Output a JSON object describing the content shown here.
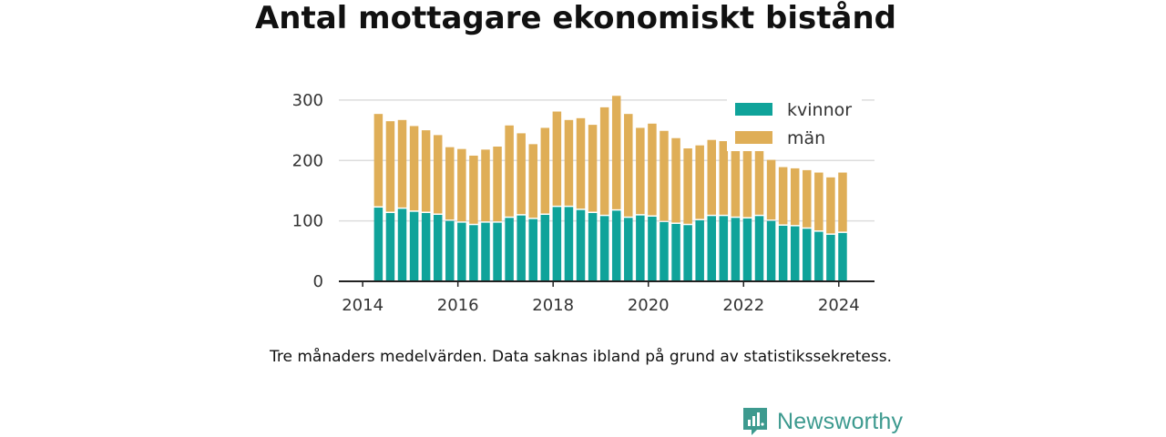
{
  "chart_data": {
    "type": "bar",
    "stacked": true,
    "title": "Antal mottagare ekonomiskt bistånd",
    "caption": "Tre månaders medelvärden. Data saknas ibland på grund av statistikssekretess.",
    "x_ticks": [
      "2014",
      "2016",
      "2018",
      "2020",
      "2022",
      "2024"
    ],
    "y_ticks": [
      "0",
      "100",
      "200",
      "300"
    ],
    "xlim": [
      2013.5,
      2024.75
    ],
    "ylim": [
      0,
      330
    ],
    "grid": true,
    "legend_position": "top-right",
    "x": [
      2014.33,
      2014.58,
      2014.83,
      2015.08,
      2015.33,
      2015.58,
      2015.83,
      2016.08,
      2016.33,
      2016.58,
      2016.83,
      2017.08,
      2017.33,
      2017.58,
      2017.83,
      2018.08,
      2018.33,
      2018.58,
      2018.83,
      2019.08,
      2019.33,
      2019.58,
      2019.83,
      2020.08,
      2020.33,
      2020.58,
      2020.83,
      2021.08,
      2021.33,
      2021.58,
      2021.83,
      2022.08,
      2022.33,
      2022.58,
      2022.83,
      2023.08,
      2023.33,
      2023.58,
      2023.83,
      2024.08
    ],
    "series": [
      {
        "name": "kvinnor",
        "color": "#0fa39a",
        "values": [
          122,
          113,
          120,
          115,
          113,
          110,
          100,
          97,
          93,
          97,
          97,
          105,
          109,
          103,
          110,
          123,
          123,
          118,
          113,
          108,
          117,
          105,
          109,
          107,
          98,
          95,
          93,
          101,
          108,
          108,
          105,
          104,
          108,
          100,
          92,
          91,
          87,
          82,
          77,
          80
        ]
      },
      {
        "name": "män",
        "color": "#dfae57",
        "values": [
          155,
          152,
          147,
          142,
          137,
          132,
          122,
          122,
          115,
          121,
          126,
          153,
          136,
          124,
          144,
          158,
          144,
          152,
          146,
          180,
          190,
          172,
          145,
          154,
          151,
          142,
          127,
          124,
          126,
          124,
          115,
          117,
          113,
          101,
          97,
          96,
          97,
          98,
          95,
          100
        ]
      }
    ]
  },
  "brand": {
    "name": "Newsworthy",
    "icon": "newsworthy-logo-icon",
    "color": "#3d9a8f"
  },
  "colors": {
    "grid": "#dddddd",
    "axis": "#222222"
  }
}
